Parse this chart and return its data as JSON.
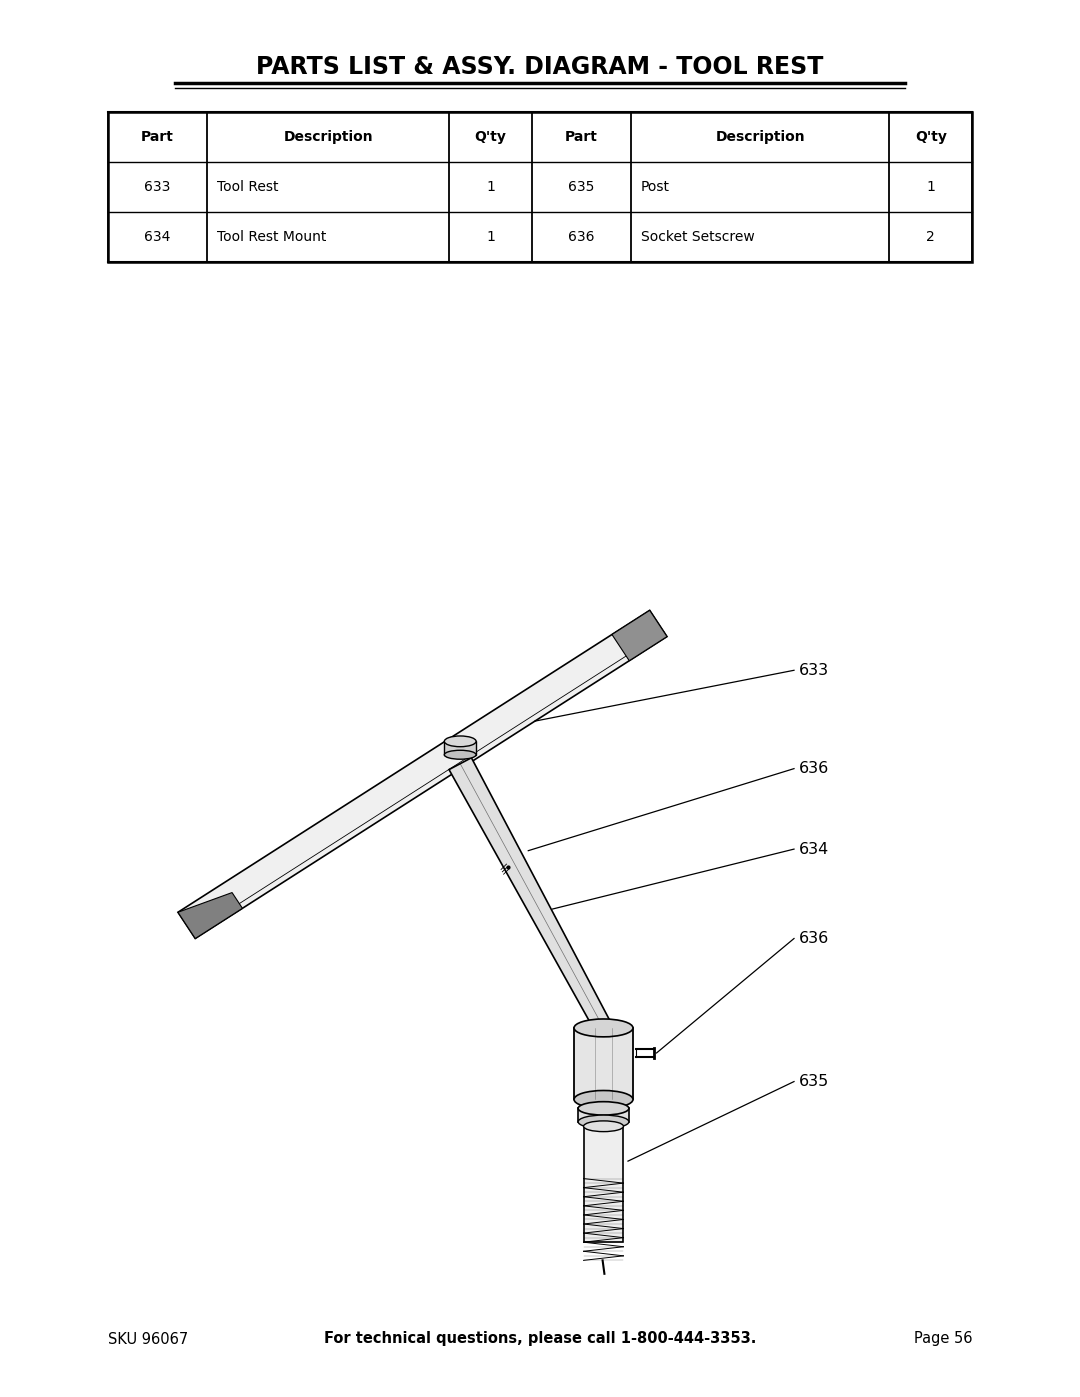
{
  "title": "PARTS LIST & ASSY. DIAGRAM - TOOL REST",
  "bg_color": "#ffffff",
  "table_headers": [
    "Part",
    "Description",
    "Q'ty",
    "Part",
    "Description",
    "Q'ty"
  ],
  "table_rows": [
    [
      "633",
      "Tool Rest",
      "1",
      "635",
      "Post",
      "1"
    ],
    [
      "634",
      "Tool Rest Mount",
      "1",
      "636",
      "Socket Setscrew",
      "2"
    ]
  ],
  "footer_sku": "SKU 96067",
  "footer_main": "For technical questions, please call 1-800-444-3353.",
  "footer_page": "Page 56"
}
